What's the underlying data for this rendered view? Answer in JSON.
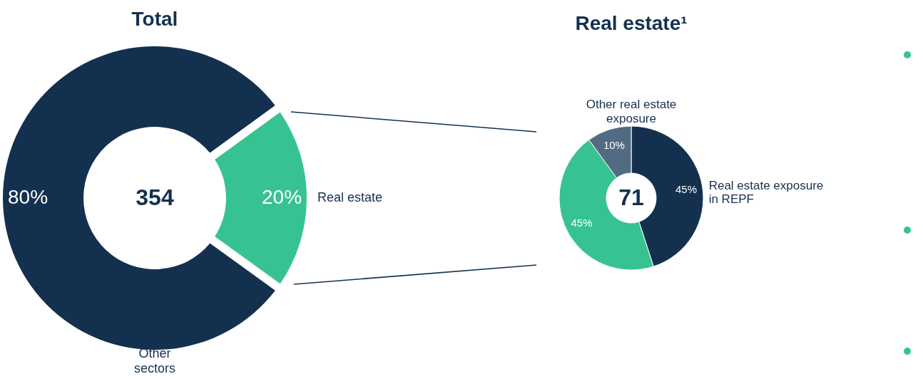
{
  "chart_data": [
    {
      "type": "donut",
      "title": "Total",
      "categories": [
        "Real estate",
        "Other sectors"
      ],
      "values": [
        20,
        80
      ],
      "colors": [
        "#37c391",
        "#14304f"
      ],
      "value_labels": [
        "20%",
        "80%"
      ],
      "annotations": [
        "354"
      ]
    },
    {
      "type": "donut",
      "title": "Real estate¹",
      "categories": [
        "Real estate exposure in REPF",
        null,
        "Other real estate exposure"
      ],
      "values": [
        45,
        45,
        10
      ],
      "colors": [
        "#14304f",
        "#37c391",
        "#516b82"
      ],
      "value_labels": [
        "45%",
        "45%",
        "10%"
      ],
      "annotations": [
        "71"
      ]
    }
  ]
}
